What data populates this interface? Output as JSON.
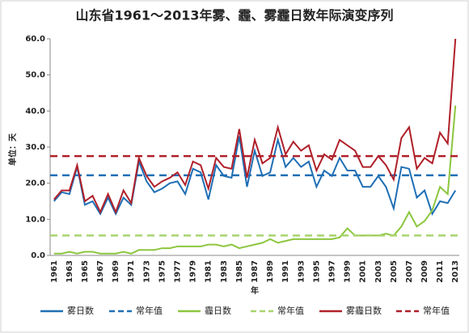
{
  "chart_data": {
    "type": "line",
    "title": "山东省1961～2013年雾、霾、雾霾日数年际演变序列",
    "y_label": "单位：天",
    "x_label": "年",
    "categories": [
      "1961",
      null,
      "1963",
      null,
      "1965",
      null,
      "1967",
      null,
      "1969",
      null,
      "1971",
      null,
      "1973",
      null,
      "1975",
      null,
      "1977",
      null,
      "1979",
      null,
      "1981",
      null,
      "1983",
      null,
      "1985",
      null,
      "1987",
      null,
      "1989",
      null,
      "1991",
      null,
      "1993",
      null,
      "1995",
      null,
      "1997",
      null,
      "1999",
      null,
      "2001",
      null,
      "2003",
      null,
      "2005",
      null,
      "2007",
      null,
      "2009",
      null,
      "2011",
      null,
      "2013"
    ],
    "ylim": [
      0,
      60
    ],
    "yticks": [
      {
        "value": 0,
        "label": "0.0"
      },
      {
        "value": 10,
        "label": "10.0"
      },
      {
        "value": 20,
        "label": "20.0"
      },
      {
        "value": 30,
        "label": "30.0"
      },
      {
        "value": 40,
        "label": "40.0"
      },
      {
        "value": 50,
        "label": "50.0"
      },
      {
        "value": 60,
        "label": "60.0"
      }
    ],
    "series": [
      {
        "name": "雾日数",
        "color": "#1f6fb5",
        "style": "solid",
        "values": [
          15,
          17.5,
          17,
          24.5,
          14,
          15,
          11.5,
          16,
          11.5,
          16,
          14,
          26,
          20.5,
          17.5,
          18.5,
          20,
          20.5,
          17,
          24,
          23,
          15.5,
          25,
          22,
          21.5,
          33,
          19,
          29,
          22,
          23,
          32,
          24.5,
          27,
          24.5,
          26,
          19,
          23.5,
          22,
          27,
          23.5,
          23.5,
          19,
          19,
          22,
          19,
          13,
          24.5,
          24,
          16,
          18,
          11.5,
          15,
          14.5,
          18
        ]
      },
      {
        "name": "常年值",
        "color": "#1f6fb5",
        "style": "dashed",
        "value": 22.2
      },
      {
        "name": "霾日数",
        "color": "#8cc63f",
        "style": "solid",
        "values": [
          0.5,
          0.5,
          1,
          0.5,
          1,
          1,
          0.5,
          0.5,
          0.5,
          1,
          0.5,
          1.5,
          1.5,
          1.5,
          2,
          2,
          2.5,
          2.5,
          2.5,
          2.5,
          3,
          3,
          2.5,
          3,
          2,
          2.5,
          3,
          3.5,
          4.5,
          3.5,
          4,
          4.5,
          4.5,
          4.5,
          4.5,
          4.5,
          4.5,
          5,
          7.5,
          5.5,
          5.5,
          5.5,
          5.5,
          6,
          5.5,
          8,
          12,
          8,
          9.5,
          12.5,
          19,
          17,
          41.5
        ]
      },
      {
        "name": "常年值",
        "color": "#a8d46f",
        "style": "dashed",
        "value": 5.5
      },
      {
        "name": "雾霾日数",
        "color": "#b0202a",
        "style": "solid",
        "values": [
          15.5,
          18,
          18,
          25,
          15,
          16.5,
          12,
          17,
          12,
          18,
          14.5,
          27,
          22,
          19,
          20.5,
          21.5,
          23,
          19.5,
          26,
          25,
          18.5,
          27,
          24.5,
          24,
          35,
          21.5,
          32,
          25.5,
          27,
          35.5,
          28,
          31.5,
          29,
          30.5,
          23.5,
          28,
          26.5,
          32,
          30.5,
          29,
          24.5,
          24.5,
          27.5,
          25,
          21,
          32.5,
          35.5,
          24,
          27,
          25.5,
          34,
          31,
          60
        ]
      },
      {
        "name": "常年值",
        "color": "#b0202a",
        "style": "dashed",
        "value": 27.5
      }
    ]
  }
}
